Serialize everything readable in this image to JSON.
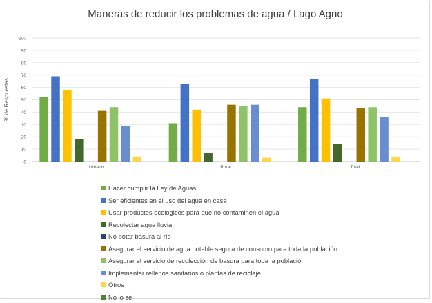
{
  "chart_data": {
    "type": "bar",
    "title": "Maneras de reducir los problemas de agua / Lago Agrio",
    "xlabel": "",
    "ylabel": "% de Respuestas",
    "ylim": [
      0,
      100
    ],
    "yticks": [
      0,
      10,
      20,
      30,
      40,
      50,
      60,
      70,
      80,
      90,
      100
    ],
    "grid": true,
    "legend_position": "bottom",
    "categories": [
      "Urbano",
      "Rural",
      "Total"
    ],
    "series": [
      {
        "name": "Hacer cumplir la Ley de Aguas",
        "color": "#70ad47",
        "values": [
          52,
          31,
          44
        ]
      },
      {
        "name": "Ser eficientes en el uso del agua en casa",
        "color": "#4472c4",
        "values": [
          69,
          63,
          67
        ]
      },
      {
        "name": "Usar productos ecológicos para que no contaminen el agua",
        "color": "#ffc000",
        "values": [
          58,
          42,
          51
        ]
      },
      {
        "name": "Recolectar agua lluvia",
        "color": "#43682b",
        "values": [
          18,
          7,
          14
        ]
      },
      {
        "name": "No botar basura al río",
        "color": "#264478",
        "values": [
          0,
          0,
          0
        ]
      },
      {
        "name": "Asegurar el servicio de agua potable segura de consumo para toda la población",
        "color": "#997300",
        "values": [
          41,
          46,
          43
        ]
      },
      {
        "name": "Asegurar el servicio de recolección de basura para toda la población",
        "color": "#8fc36a",
        "values": [
          44,
          45,
          44
        ]
      },
      {
        "name": "Implementar rellenos sanitarios o plantas de reciclaje",
        "color": "#698ed0",
        "values": [
          29,
          46,
          36
        ]
      },
      {
        "name": "Otros",
        "color": "#ffd54d",
        "values": [
          4,
          3,
          4
        ]
      },
      {
        "name": "No lo sé",
        "color": "#548235",
        "values": [
          0,
          0,
          0
        ]
      }
    ]
  }
}
